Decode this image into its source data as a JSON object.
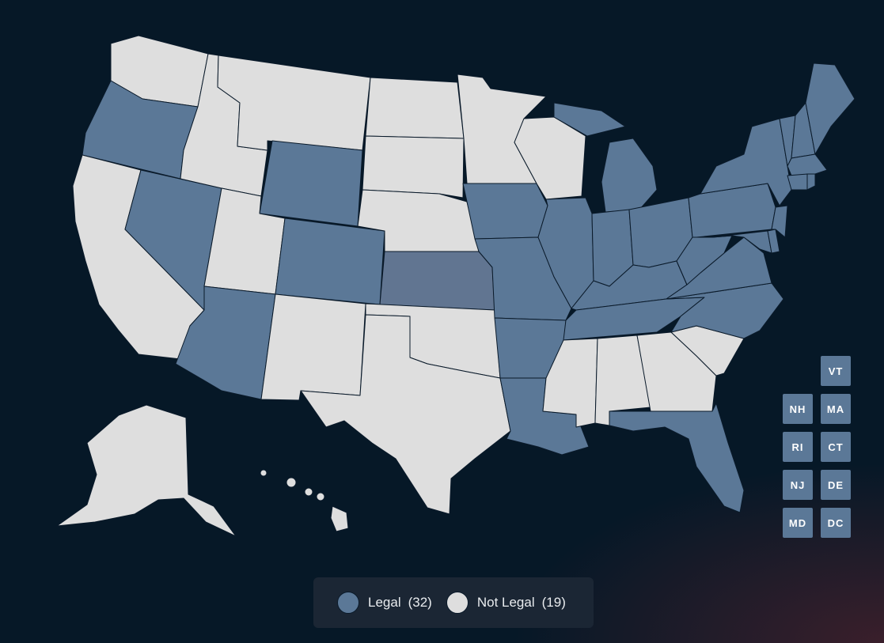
{
  "colors": {
    "background": "#061827",
    "legal": "#5b7897",
    "not_legal": "#dedede",
    "kansas": "#617591",
    "border": "#0a1a2a"
  },
  "legend": {
    "legal_label": "Legal",
    "legal_count": "(32)",
    "not_legal_label": "Not Legal",
    "not_legal_count": "(19)"
  },
  "small_states": [
    {
      "abbr": "VT",
      "status": "legal"
    },
    {
      "abbr": "NH",
      "status": "legal"
    },
    {
      "abbr": "MA",
      "status": "legal"
    },
    {
      "abbr": "RI",
      "status": "legal"
    },
    {
      "abbr": "CT",
      "status": "legal"
    },
    {
      "abbr": "NJ",
      "status": "legal"
    },
    {
      "abbr": "DE",
      "status": "legal"
    },
    {
      "abbr": "MD",
      "status": "legal"
    },
    {
      "abbr": "DC",
      "status": "legal"
    }
  ],
  "states": {
    "WA": "not_legal",
    "OR": "legal",
    "CA": "not_legal",
    "NV": "legal",
    "ID": "not_legal",
    "MT": "not_legal",
    "WY": "legal",
    "UT": "not_legal",
    "AZ": "legal",
    "CO": "legal",
    "NM": "not_legal",
    "ND": "not_legal",
    "SD": "not_legal",
    "NE": "not_legal",
    "KS": "legal",
    "OK": "not_legal",
    "TX": "not_legal",
    "MN": "not_legal",
    "IA": "legal",
    "MO": "legal",
    "AR": "legal",
    "LA": "legal",
    "WI": "not_legal",
    "IL": "legal",
    "MI": "legal",
    "IN": "legal",
    "OH": "legal",
    "KY": "legal",
    "TN": "legal",
    "MS": "not_legal",
    "AL": "not_legal",
    "GA": "not_legal",
    "FL": "legal",
    "SC": "not_legal",
    "NC": "legal",
    "VA": "legal",
    "WV": "legal",
    "PA": "legal",
    "NY": "legal",
    "VT": "legal",
    "NH": "legal",
    "ME": "legal",
    "MA": "legal",
    "CT": "legal",
    "RI": "legal",
    "NJ": "legal",
    "DE": "legal",
    "MD": "legal",
    "AK": "not_legal",
    "HI": "not_legal"
  }
}
